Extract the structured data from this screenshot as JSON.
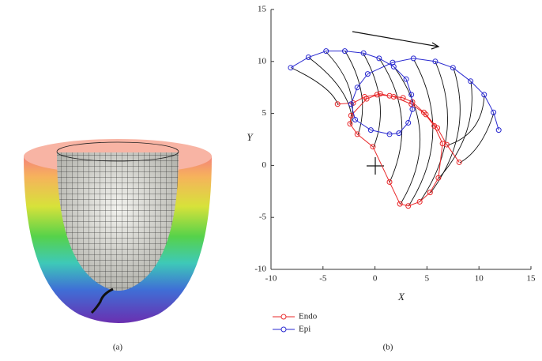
{
  "panels": [
    "(a)",
    "(b)"
  ],
  "chart_data": {
    "type": "line",
    "xlabel": "X",
    "ylabel": "Y",
    "xlim": [
      -10,
      15
    ],
    "ylim": [
      -10,
      15
    ],
    "xticks": [
      -10,
      -5,
      0,
      5,
      10,
      15
    ],
    "yticks": [
      -10,
      -5,
      0,
      5,
      10,
      15
    ],
    "grid": false,
    "legend": "below-left",
    "series": [
      {
        "name": "Endo",
        "color": "#e8282a",
        "x": [
          -3.6,
          -2.1,
          -1.0,
          0.2,
          1.4,
          2.7,
          3.6,
          4.7,
          5.7,
          6.5,
          6.1,
          5.3,
          4.3,
          3.2,
          2.4,
          1.4,
          -0.2,
          -1.7,
          -2.4,
          -2.3,
          -0.8,
          0.5,
          1.8,
          3.5,
          4.9,
          6.0,
          6.9,
          8.1
        ],
        "y": [
          5.9,
          6.0,
          6.6,
          6.8,
          6.7,
          6.5,
          6.1,
          5.1,
          3.8,
          2.1,
          -1.2,
          -2.6,
          -3.5,
          -3.9,
          -3.7,
          -1.6,
          1.8,
          3.0,
          4.0,
          4.8,
          6.4,
          6.9,
          6.6,
          5.9,
          4.9,
          3.6,
          2.0,
          0.3
        ]
      },
      {
        "name": "Epi",
        "color": "#2a2ad0",
        "x": [
          -8.1,
          -6.4,
          -4.7,
          -2.9,
          -1.1,
          0.4,
          1.8,
          3.0,
          3.5,
          3.6,
          3.2,
          2.3,
          1.4,
          -0.4,
          -1.9,
          -2.3,
          -1.7,
          -0.7,
          1.7,
          3.7,
          5.8,
          7.5,
          9.2,
          10.5,
          11.4,
          11.9
        ],
        "y": [
          9.4,
          10.4,
          11.0,
          11.0,
          10.8,
          10.3,
          9.5,
          8.3,
          6.8,
          5.4,
          4.1,
          3.1,
          3.0,
          3.4,
          4.4,
          5.9,
          7.5,
          8.8,
          9.9,
          10.3,
          10.0,
          9.4,
          8.1,
          6.8,
          5.1,
          3.4
        ]
      }
    ]
  }
}
